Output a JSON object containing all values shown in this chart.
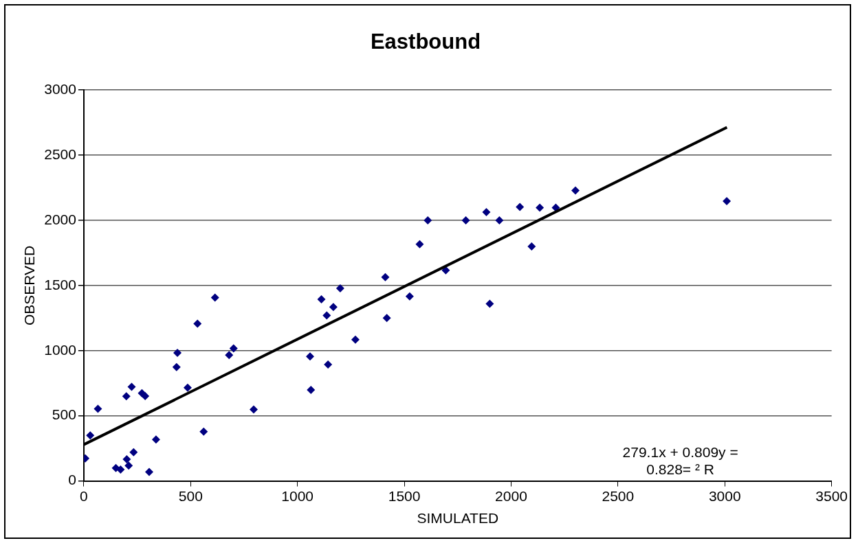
{
  "chart_data": {
    "type": "scatter",
    "title": "Eastbound",
    "xlabel": "SIMULATED",
    "ylabel": "OBSERVED",
    "xlim": [
      0,
      3500
    ],
    "xticks": [
      0,
      500,
      1000,
      1500,
      2000,
      2500,
      3000,
      3500
    ],
    "ylim": [
      0,
      3000
    ],
    "yticks": [
      0,
      500,
      1000,
      1500,
      2000,
      2500,
      3000
    ],
    "grid": "y",
    "legend": false,
    "marker": "diamond",
    "series": [
      {
        "color": "#000080",
        "x": [
          614,
          532,
          438,
          434,
          680,
          701,
          224,
          199,
          272,
          287,
          66,
          486,
          795,
          30,
          561,
          338,
          7,
          233,
          201,
          210,
          150,
          172,
          306,
          1411,
          1200,
          1112,
          1168,
          1137,
          1525,
          1900,
          1418,
          1271,
          1059,
          1143,
          1063,
          1694,
          1572,
          1610,
          1788,
          1884,
          1945,
          2041,
          2096,
          2134,
          2209,
          2301,
          3009
        ],
        "values": [
          1407,
          1207,
          983,
          874,
          966,
          1017,
          722,
          650,
          674,
          651,
          554,
          716,
          549,
          350,
          379,
          318,
          173,
          221,
          167,
          118,
          99,
          87,
          69,
          1564,
          1478,
          1394,
          1335,
          1270,
          1417,
          1360,
          1250,
          1084,
          956,
          893,
          699,
          1617,
          1817,
          2000,
          2000,
          2063,
          2000,
          2103,
          1800,
          2097,
          2097,
          2229,
          2147
        ]
      },
      {
        "type": "line",
        "color": "#000000",
        "marker": "none",
        "line_style": "solid",
        "x": [
          0,
          3010
        ],
        "values": [
          279,
          2714
        ]
      }
    ],
    "annotations": [
      "279.1x + 0.809y =",
      "0.828= ² R"
    ]
  }
}
